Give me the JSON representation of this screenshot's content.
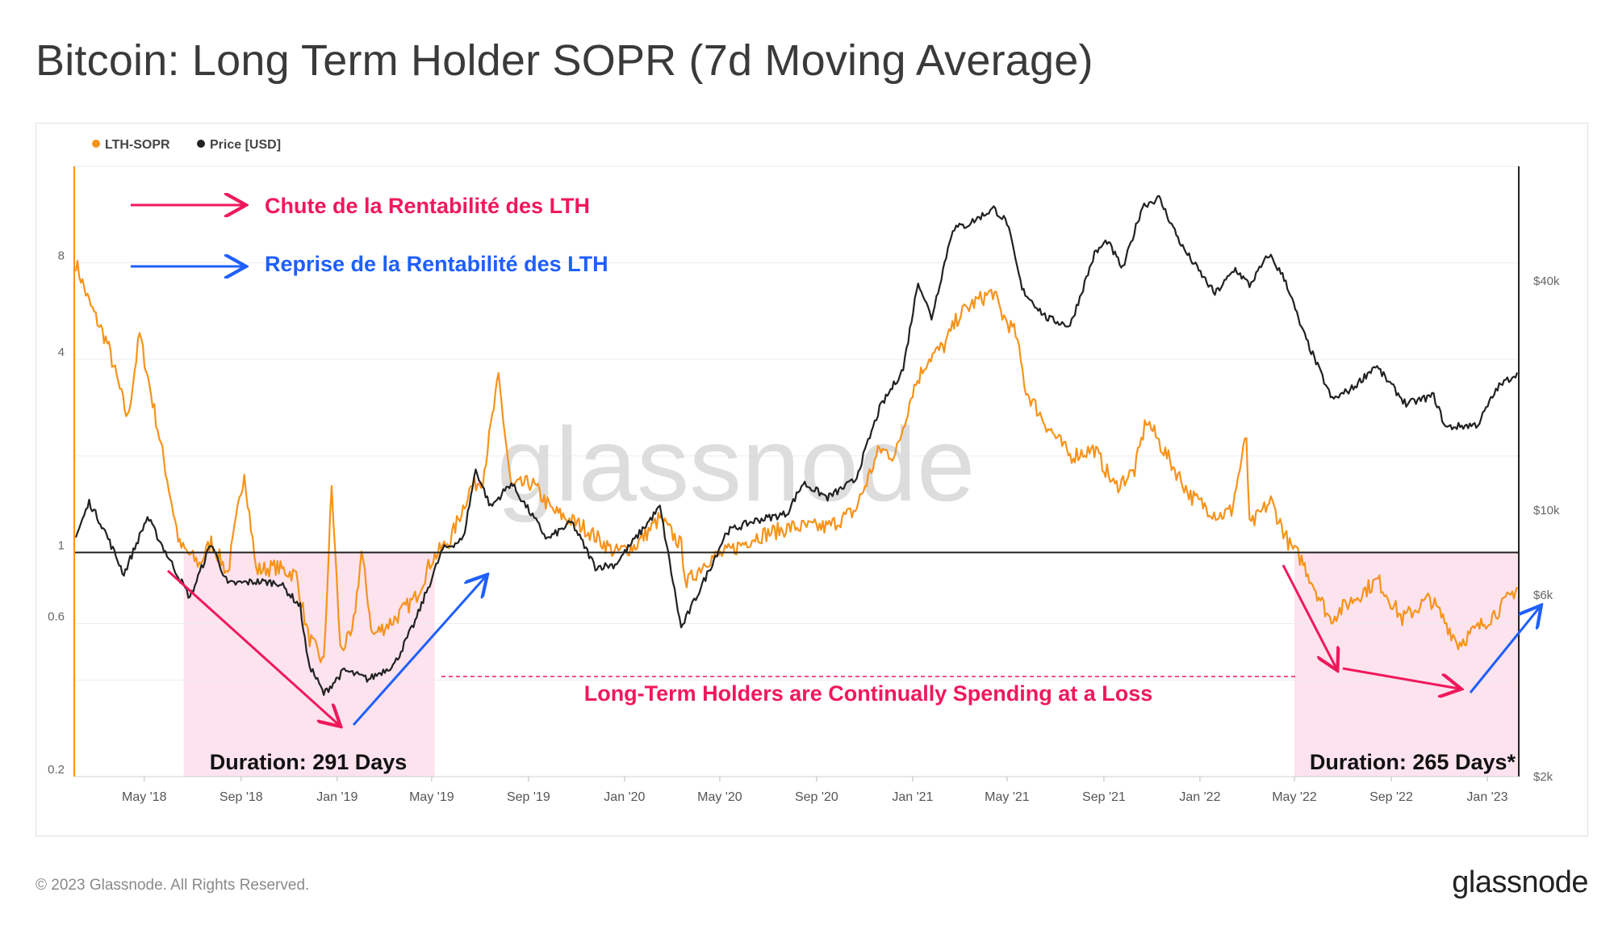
{
  "title": "Bitcoin: Long Term Holder SOPR (7d Moving Average)",
  "footer": {
    "copyright": "© 2023 Glassnode. All Rights Reserved.",
    "logo": "glassnode"
  },
  "watermark": "glassnode",
  "colors": {
    "sopr": "#f7931a",
    "price": "#222222",
    "red": "#f0185b",
    "blue": "#1f5fff",
    "zone": "#fde3ee"
  },
  "annotations": {
    "legend_red": "Chute de la Rentabilité des LTH",
    "legend_blue": "Reprise de la Rentabilité des LTH",
    "loss_text": "Long-Term Holders are Continually Spending at a Loss",
    "duration_1": "Duration: 291 Days",
    "duration_2": "Duration: 265 Days*"
  },
  "chart_data": {
    "type": "line",
    "title": "Bitcoin: Long Term Holder SOPR (7d Moving Average)",
    "legend": [
      {
        "name": "LTH-SOPR",
        "color": "#f7931a"
      },
      {
        "name": "Price [USD]",
        "color": "#222222"
      }
    ],
    "x_start": "2018-02-01",
    "x_end": "2023-02-10",
    "x_ticks": [
      "May '18",
      "Sep '18",
      "Jan '19",
      "May '19",
      "Sep '19",
      "Jan '20",
      "May '20",
      "Sep '20",
      "Jan '21",
      "May '21",
      "Sep '21",
      "Jan '22",
      "May '22",
      "Sep '22",
      "Jan '23"
    ],
    "y_left": {
      "scale": "log",
      "range": [
        0.2,
        16
      ],
      "ticks": [
        0.2,
        0.6,
        1,
        4,
        8
      ],
      "tick_labels": [
        "0.2",
        "0.6",
        "1",
        "4",
        "8"
      ]
    },
    "y_right": {
      "scale": "log",
      "range": [
        2000,
        80000
      ],
      "ticks": [
        2000,
        6000,
        10000,
        40000
      ],
      "tick_labels": [
        "$2k",
        "$6k",
        "$10k",
        "$40k"
      ]
    },
    "reference_line": 1,
    "sopr_anchors": [
      [
        "2018-02-03",
        8.0
      ],
      [
        "2018-02-20",
        6.0
      ],
      [
        "2018-03-15",
        4.5
      ],
      [
        "2018-04-10",
        2.6
      ],
      [
        "2018-04-25",
        4.8
      ],
      [
        "2018-05-20",
        2.3
      ],
      [
        "2018-06-15",
        1.05
      ],
      [
        "2018-07-10",
        0.92
      ],
      [
        "2018-07-25",
        1.08
      ],
      [
        "2018-08-15",
        0.86
      ],
      [
        "2018-09-05",
        1.8
      ],
      [
        "2018-09-20",
        0.88
      ],
      [
        "2018-10-15",
        0.9
      ],
      [
        "2018-11-10",
        0.85
      ],
      [
        "2018-11-25",
        0.55
      ],
      [
        "2018-12-15",
        0.45
      ],
      [
        "2018-12-25",
        1.6
      ],
      [
        "2019-01-05",
        0.5
      ],
      [
        "2019-01-20",
        0.55
      ],
      [
        "2019-02-01",
        1.0
      ],
      [
        "2019-02-15",
        0.55
      ],
      [
        "2019-03-15",
        0.62
      ],
      [
        "2019-04-10",
        0.72
      ],
      [
        "2019-05-01",
        0.95
      ],
      [
        "2019-05-25",
        1.1
      ],
      [
        "2019-06-20",
        1.6
      ],
      [
        "2019-07-05",
        1.7
      ],
      [
        "2019-07-25",
        3.5
      ],
      [
        "2019-08-10",
        1.6
      ],
      [
        "2019-09-05",
        1.65
      ],
      [
        "2019-10-01",
        1.35
      ],
      [
        "2019-11-10",
        1.2
      ],
      [
        "2019-12-20",
        1.0
      ],
      [
        "2020-01-15",
        1.05
      ],
      [
        "2020-02-15",
        1.28
      ],
      [
        "2020-03-13",
        1.05
      ],
      [
        "2020-03-20",
        0.8
      ],
      [
        "2020-04-15",
        0.95
      ],
      [
        "2020-05-10",
        1.0
      ],
      [
        "2020-06-15",
        1.12
      ],
      [
        "2020-08-01",
        1.2
      ],
      [
        "2020-09-15",
        1.2
      ],
      [
        "2020-10-20",
        1.35
      ],
      [
        "2020-11-20",
        2.1
      ],
      [
        "2020-12-10",
        2.0
      ],
      [
        "2021-01-01",
        3.2
      ],
      [
        "2021-01-20",
        4.0
      ],
      [
        "2021-02-10",
        4.4
      ],
      [
        "2021-03-01",
        5.5
      ],
      [
        "2021-03-20",
        6.0
      ],
      [
        "2021-04-13",
        6.5
      ],
      [
        "2021-04-25",
        5.5
      ],
      [
        "2021-05-12",
        4.8
      ],
      [
        "2021-05-25",
        3.2
      ],
      [
        "2021-06-20",
        2.5
      ],
      [
        "2021-07-20",
        2.0
      ],
      [
        "2021-08-20",
        2.1
      ],
      [
        "2021-09-15",
        1.6
      ],
      [
        "2021-10-10",
        1.8
      ],
      [
        "2021-10-25",
        2.6
      ],
      [
        "2021-11-20",
        2.0
      ],
      [
        "2021-12-20",
        1.5
      ],
      [
        "2022-01-25",
        1.3
      ],
      [
        "2022-02-10",
        1.35
      ],
      [
        "2022-03-01",
        2.3
      ],
      [
        "2022-03-05",
        1.2
      ],
      [
        "2022-04-01",
        1.45
      ],
      [
        "2022-04-25",
        1.05
      ],
      [
        "2022-05-10",
        0.95
      ],
      [
        "2022-06-15",
        0.62
      ],
      [
        "2022-07-10",
        0.7
      ],
      [
        "2022-08-15",
        0.82
      ],
      [
        "2022-09-15",
        0.62
      ],
      [
        "2022-10-20",
        0.72
      ],
      [
        "2022-11-10",
        0.6
      ],
      [
        "2022-11-25",
        0.52
      ],
      [
        "2022-12-20",
        0.58
      ],
      [
        "2023-01-20",
        0.68
      ],
      [
        "2023-02-08",
        0.78
      ]
    ],
    "price_anchors": [
      [
        "2018-02-03",
        8500
      ],
      [
        "2018-02-20",
        10500
      ],
      [
        "2018-03-10",
        9000
      ],
      [
        "2018-04-05",
        6800
      ],
      [
        "2018-05-05",
        9600
      ],
      [
        "2018-06-01",
        7500
      ],
      [
        "2018-06-28",
        5900
      ],
      [
        "2018-07-25",
        8200
      ],
      [
        "2018-08-15",
        6400
      ],
      [
        "2018-09-20",
        6500
      ],
      [
        "2018-10-20",
        6450
      ],
      [
        "2018-11-15",
        5600
      ],
      [
        "2018-11-25",
        4000
      ],
      [
        "2018-12-15",
        3300
      ],
      [
        "2019-01-10",
        3800
      ],
      [
        "2019-02-10",
        3600
      ],
      [
        "2019-03-15",
        3950
      ],
      [
        "2019-04-10",
        5100
      ],
      [
        "2019-05-15",
        7900
      ],
      [
        "2019-06-10",
        8400
      ],
      [
        "2019-06-26",
        12800
      ],
      [
        "2019-07-15",
        10200
      ],
      [
        "2019-08-10",
        11800
      ],
      [
        "2019-09-25",
        8400
      ],
      [
        "2019-10-26",
        9300
      ],
      [
        "2019-11-25",
        7100
      ],
      [
        "2019-12-20",
        7200
      ],
      [
        "2020-01-20",
        8700
      ],
      [
        "2020-02-15",
        10200
      ],
      [
        "2020-03-13",
        4900
      ],
      [
        "2020-04-15",
        6800
      ],
      [
        "2020-05-10",
        8800
      ],
      [
        "2020-06-15",
        9400
      ],
      [
        "2020-07-25",
        9800
      ],
      [
        "2020-08-15",
        11800
      ],
      [
        "2020-09-15",
        10800
      ],
      [
        "2020-10-20",
        12000
      ],
      [
        "2020-11-20",
        18500
      ],
      [
        "2020-12-20",
        23500
      ],
      [
        "2021-01-08",
        40000
      ],
      [
        "2021-01-25",
        32000
      ],
      [
        "2021-02-21",
        55000
      ],
      [
        "2021-03-10",
        56000
      ],
      [
        "2021-04-14",
        62000
      ],
      [
        "2021-05-01",
        57000
      ],
      [
        "2021-05-20",
        38000
      ],
      [
        "2021-06-20",
        32000
      ],
      [
        "2021-07-20",
        30500
      ],
      [
        "2021-08-20",
        47000
      ],
      [
        "2021-09-05",
        51000
      ],
      [
        "2021-09-25",
        43000
      ],
      [
        "2021-10-20",
        63000
      ],
      [
        "2021-11-10",
        66000
      ],
      [
        "2021-12-10",
        49000
      ],
      [
        "2022-01-20",
        37000
      ],
      [
        "2022-02-15",
        43000
      ],
      [
        "2022-03-05",
        39000
      ],
      [
        "2022-03-30",
        47000
      ],
      [
        "2022-04-20",
        40000
      ],
      [
        "2022-05-10",
        30000
      ],
      [
        "2022-06-18",
        19500
      ],
      [
        "2022-07-15",
        21000
      ],
      [
        "2022-08-12",
        24000
      ],
      [
        "2022-09-20",
        19000
      ],
      [
        "2022-10-25",
        20000
      ],
      [
        "2022-11-09",
        16500
      ],
      [
        "2022-12-20",
        16800
      ],
      [
        "2023-01-14",
        21000
      ],
      [
        "2023-02-08",
        23000
      ]
    ],
    "shaded_zones": [
      {
        "start": "2018-06-20",
        "end": "2019-05-05"
      },
      {
        "start": "2022-05-01",
        "end": "2023-02-10"
      }
    ]
  }
}
